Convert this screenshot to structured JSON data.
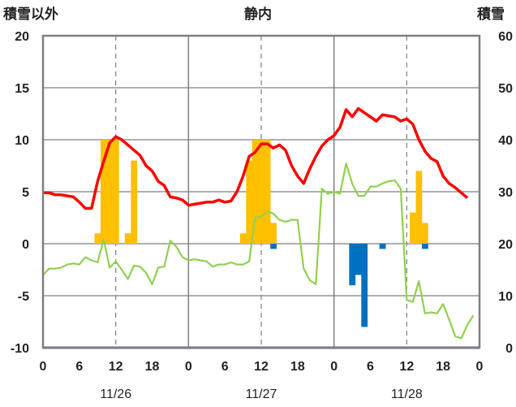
{
  "chart_data": {
    "type": "combo",
    "title": "静内",
    "y_left_label": "積雪以外",
    "y_right_label": "積雪",
    "y_left_range": [
      -10,
      20
    ],
    "y_left_ticks": [
      "20",
      "15",
      "10",
      "5",
      "0",
      "-5",
      "-10"
    ],
    "y_right_range": [
      0,
      60
    ],
    "y_right_ticks": [
      "60",
      "50",
      "40",
      "30",
      "20",
      "10",
      "0"
    ],
    "x_hour_ticks": [
      "0",
      "6",
      "12",
      "18",
      "0",
      "6",
      "12",
      "18",
      "0",
      "6",
      "12",
      "18",
      "0"
    ],
    "x_date_labels": [
      "11/26",
      "11/27",
      "11/28"
    ],
    "grid": true,
    "colors": {
      "precipitation": "#FFC000",
      "snow_depth_change": "#0070C0",
      "temperature": "#FF0000",
      "green_series": "#92D050",
      "purple_series": "#7030A0",
      "axis_frame": "#7f7f7f",
      "grid": "#7f7f7f"
    },
    "bars_yellow": [
      {
        "x": 9,
        "value": 1
      },
      {
        "x": 10,
        "value": 10
      },
      {
        "x": 11,
        "value": 10
      },
      {
        "x": 12,
        "value": 10
      },
      {
        "x": 14,
        "value": 1
      },
      {
        "x": 15,
        "value": 8
      },
      {
        "x": 33,
        "value": 1
      },
      {
        "x": 34,
        "value": 8
      },
      {
        "x": 35,
        "value": 10
      },
      {
        "x": 36,
        "value": 10
      },
      {
        "x": 37,
        "value": 10
      },
      {
        "x": 38,
        "value": 2
      },
      {
        "x": 61,
        "value": 3
      },
      {
        "x": 62,
        "value": 7
      },
      {
        "x": 63,
        "value": 2
      }
    ],
    "bars_blue": [
      {
        "x": 38,
        "value": -0.5
      },
      {
        "x": 51,
        "value": -4
      },
      {
        "x": 52,
        "value": -3
      },
      {
        "x": 53,
        "value": -8
      },
      {
        "x": 56,
        "value": -0.5
      },
      {
        "x": 63,
        "value": -0.5
      }
    ],
    "temperature": [
      [
        0,
        4.9
      ],
      [
        1,
        4.9
      ],
      [
        2,
        4.7
      ],
      [
        3,
        4.7
      ],
      [
        4,
        4.6
      ],
      [
        5,
        4.5
      ],
      [
        6,
        4.0
      ],
      [
        7,
        3.4
      ],
      [
        8,
        3.4
      ],
      [
        9,
        6.0
      ],
      [
        10,
        7.9
      ],
      [
        11,
        9.7
      ],
      [
        12,
        10.3
      ],
      [
        13,
        10.0
      ],
      [
        14,
        9.5
      ],
      [
        15,
        9.0
      ],
      [
        16,
        8.5
      ],
      [
        17,
        7.5
      ],
      [
        18,
        7.0
      ],
      [
        19,
        6.0
      ],
      [
        20,
        5.6
      ],
      [
        21,
        4.5
      ],
      [
        22,
        4.4
      ],
      [
        23,
        4.2
      ],
      [
        24,
        3.7
      ],
      [
        25,
        3.8
      ],
      [
        26,
        3.9
      ],
      [
        27,
        4.0
      ],
      [
        28,
        4.0
      ],
      [
        29,
        4.2
      ],
      [
        30,
        4.0
      ],
      [
        31,
        4.1
      ],
      [
        32,
        5.0
      ],
      [
        33,
        6.5
      ],
      [
        34,
        8.4
      ],
      [
        35,
        8.8
      ],
      [
        36,
        9.6
      ],
      [
        37,
        9.6
      ],
      [
        38,
        9.2
      ],
      [
        39,
        9.5
      ],
      [
        40,
        9.0
      ],
      [
        41,
        7.5
      ],
      [
        42,
        6.5
      ],
      [
        43,
        5.8
      ],
      [
        44,
        7.2
      ],
      [
        45,
        8.4
      ],
      [
        46,
        9.4
      ],
      [
        47,
        10.0
      ],
      [
        48,
        10.4
      ],
      [
        49,
        11.2
      ],
      [
        50,
        12.9
      ],
      [
        51,
        12.2
      ],
      [
        52,
        13.0
      ],
      [
        53,
        12.6
      ],
      [
        54,
        12.2
      ],
      [
        55,
        11.8
      ],
      [
        56,
        12.4
      ],
      [
        57,
        12.3
      ],
      [
        58,
        12.2
      ],
      [
        59,
        11.8
      ],
      [
        60,
        12.0
      ],
      [
        61,
        11.5
      ],
      [
        62,
        10.0
      ],
      [
        63,
        8.9
      ],
      [
        64,
        8.2
      ],
      [
        65,
        7.9
      ],
      [
        66,
        6.5
      ],
      [
        67,
        5.8
      ],
      [
        68,
        5.4
      ],
      [
        69,
        4.9
      ],
      [
        70,
        4.4
      ]
    ],
    "green_series": [
      [
        0,
        -3.0
      ],
      [
        1,
        -2.4
      ],
      [
        2,
        -2.4
      ],
      [
        3,
        -2.3
      ],
      [
        4,
        -2.0
      ],
      [
        5,
        -1.9
      ],
      [
        6,
        -2.0
      ],
      [
        7,
        -1.3
      ],
      [
        8,
        -1.6
      ],
      [
        9,
        -1.8
      ],
      [
        10,
        0.4
      ],
      [
        11,
        -2.3
      ],
      [
        12,
        -1.7
      ],
      [
        13,
        -2.5
      ],
      [
        14,
        -3.4
      ],
      [
        15,
        -2.1
      ],
      [
        16,
        -2.2
      ],
      [
        17,
        -2.8
      ],
      [
        18,
        -3.9
      ],
      [
        19,
        -2.3
      ],
      [
        20,
        -2.2
      ],
      [
        21,
        0.3
      ],
      [
        22,
        -0.3
      ],
      [
        23,
        -1.3
      ],
      [
        24,
        -1.6
      ],
      [
        25,
        -1.5
      ],
      [
        26,
        -1.6
      ],
      [
        27,
        -1.7
      ],
      [
        28,
        -2.2
      ],
      [
        29,
        -2.0
      ],
      [
        30,
        -2.0
      ],
      [
        31,
        -1.8
      ],
      [
        32,
        -2.0
      ],
      [
        33,
        -2.0
      ],
      [
        34,
        -1.7
      ],
      [
        35,
        2.5
      ],
      [
        36,
        2.6
      ],
      [
        37,
        3.1
      ],
      [
        38,
        2.9
      ],
      [
        39,
        2.3
      ],
      [
        40,
        2.1
      ],
      [
        41,
        2.3
      ],
      [
        42,
        2.3
      ],
      [
        43,
        -2.4
      ],
      [
        44,
        -3.5
      ],
      [
        45,
        -3.9
      ],
      [
        46,
        5.3
      ],
      [
        47,
        4.8
      ],
      [
        48,
        5.0
      ],
      [
        49,
        4.8
      ],
      [
        50,
        7.7
      ],
      [
        51,
        5.8
      ],
      [
        52,
        4.6
      ],
      [
        53,
        4.6
      ],
      [
        54,
        5.5
      ],
      [
        55,
        5.5
      ],
      [
        56,
        5.8
      ],
      [
        57,
        6.0
      ],
      [
        58,
        6.1
      ],
      [
        59,
        5.3
      ],
      [
        60,
        -5.4
      ],
      [
        61,
        -5.6
      ],
      [
        62,
        -3.6
      ],
      [
        63,
        -6.7
      ],
      [
        64,
        -6.6
      ],
      [
        65,
        -6.7
      ],
      [
        66,
        -5.8
      ],
      [
        67,
        -7.3
      ],
      [
        68,
        -8.9
      ],
      [
        69,
        -9.1
      ],
      [
        70,
        -7.8
      ],
      [
        71,
        -6.9
      ]
    ],
    "purple_series": [
      [
        0,
        -10
      ],
      [
        72,
        -10
      ]
    ]
  }
}
